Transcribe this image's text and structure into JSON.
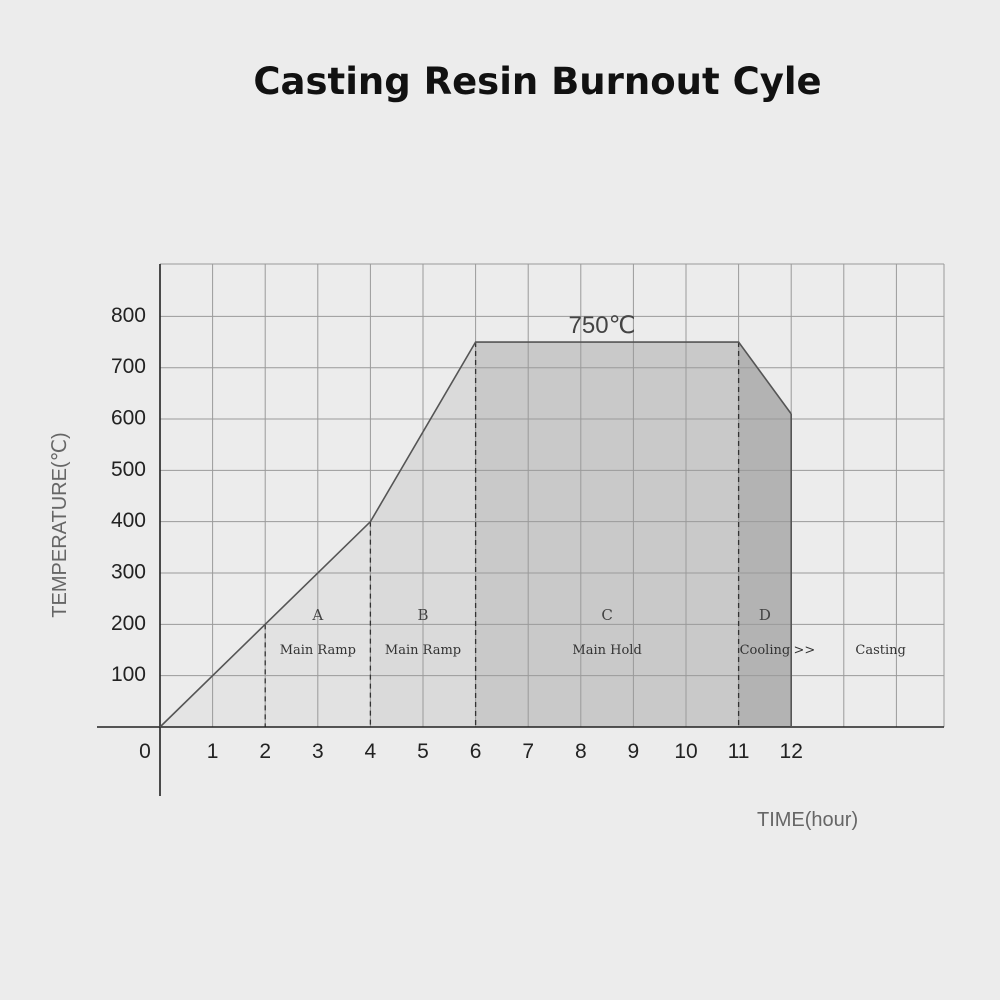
{
  "chart_data": {
    "type": "area",
    "title": "Casting Resin Burnout Cyle",
    "xlabel": "TIME(hour)",
    "ylabel": "TEMPERATURE(℃)",
    "x_ticks": [
      "0",
      "1",
      "2",
      "3",
      "4",
      "5",
      "6",
      "7",
      "8",
      "9",
      "10",
      "11",
      "12"
    ],
    "y_ticks": [
      "100",
      "200",
      "300",
      "400",
      "500",
      "600",
      "700",
      "800"
    ],
    "xlim": [
      0,
      14.8
    ],
    "ylim": [
      -30,
      900
    ],
    "grid": true,
    "series": [
      {
        "x": [
          0,
          2,
          4,
          6,
          11,
          12
        ],
        "y": [
          0,
          200,
          400,
          750,
          750,
          610
        ]
      }
    ],
    "phases": [
      {
        "letter": "A",
        "name": "Main Ramp",
        "start": 2,
        "end": 4,
        "color": "#e2e2e2"
      },
      {
        "letter": "B",
        "name": "Main Ramp",
        "start": 4,
        "end": 6,
        "color": "#dadada"
      },
      {
        "letter": "C",
        "name": "Main Hold",
        "start": 6,
        "end": 11,
        "color": "#c9c9c9"
      },
      {
        "letter": "D",
        "name": "Cooling",
        "start": 11,
        "end": 12,
        "color": "#b3b3b3"
      }
    ],
    "first_fill_color": "#e4e4e4",
    "dividers": [
      2,
      4,
      6,
      11
    ],
    "extra_labels": [
      ">>",
      "Casting"
    ],
    "peak_label": "750℃"
  }
}
